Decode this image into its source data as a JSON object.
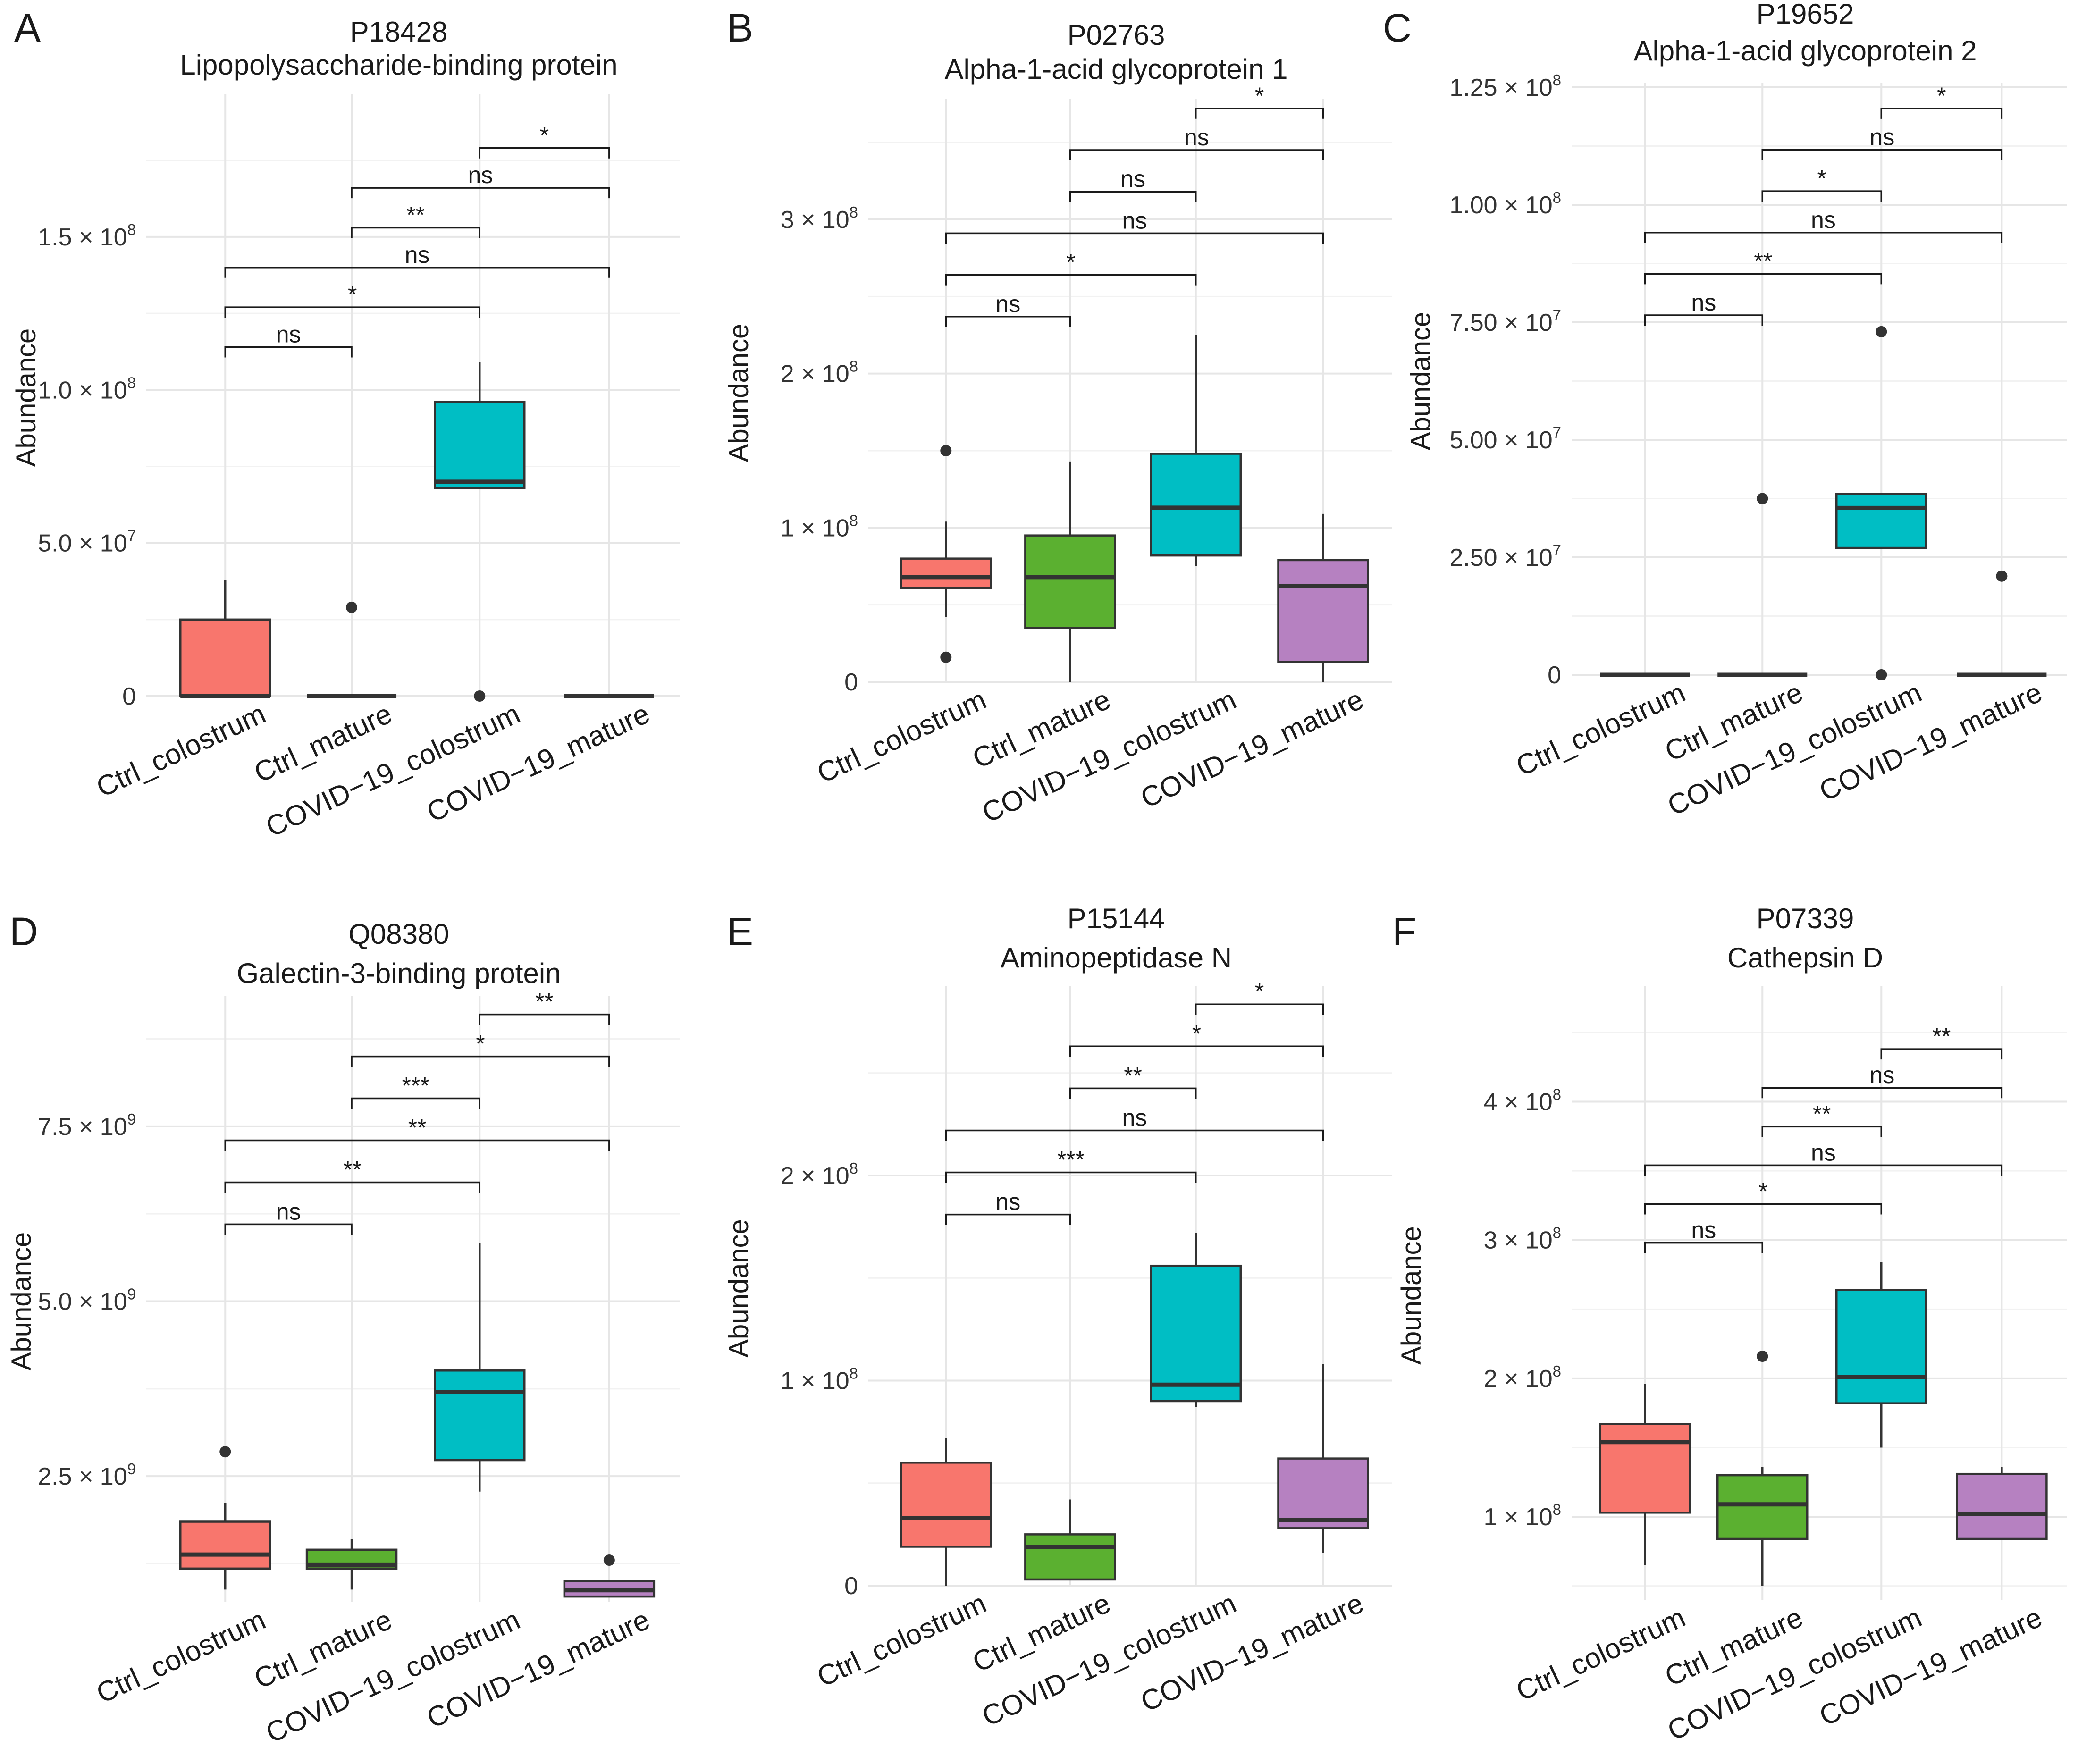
{
  "colors": {
    "Ctrl_colostrum": "#F8766D",
    "Ctrl_mature": "#5BB030",
    "COVID−19_colostrum": "#00BEC4",
    "COVID−19_mature": "#B681C1"
  },
  "chart_data": [
    {
      "type": "box",
      "panel": "A",
      "title": [
        "P18428",
        "Lipopolysaccharide-binding protein"
      ],
      "ylabel": "Abundance",
      "categories": [
        "Ctrl_colostrum",
        "Ctrl_mature",
        "COVID−19_colostrum",
        "COVID−19_mature"
      ],
      "ylim": [
        0,
        195000000
      ],
      "yticks": [
        {
          "value": 0,
          "label": "0",
          "base": "0",
          "exp": ""
        },
        {
          "value": 50000000,
          "label": "5.0 × 10^7",
          "base": "5.0 × 10",
          "exp": "7"
        },
        {
          "value": 100000000,
          "label": "1.0 × 10^8",
          "base": "1.0 × 10",
          "exp": "8"
        },
        {
          "value": 150000000,
          "label": "1.5 × 10^8",
          "base": "1.5 × 10",
          "exp": "8"
        }
      ],
      "boxes": [
        {
          "category": "Ctrl_colostrum",
          "min": 0,
          "q1": 0,
          "median": 0,
          "q3": 25000000,
          "max": 38000000,
          "outliers": []
        },
        {
          "category": "Ctrl_mature",
          "min": 0,
          "q1": 0,
          "median": 0,
          "q3": 0,
          "max": 0,
          "outliers": [
            29000000
          ]
        },
        {
          "category": "COVID−19_colostrum",
          "min": 68000000,
          "q1": 68000000,
          "median": 70000000,
          "q3": 96000000,
          "max": 109000000,
          "outliers": [
            0
          ]
        },
        {
          "category": "COVID−19_mature",
          "min": 0,
          "q1": 0,
          "median": 0,
          "q3": 0,
          "max": 0,
          "outliers": []
        }
      ],
      "comparisons": [
        {
          "from": 0,
          "to": 1,
          "y": 114000000,
          "label": "ns"
        },
        {
          "from": 0,
          "to": 2,
          "y": 127000000,
          "label": "*"
        },
        {
          "from": 0,
          "to": 3,
          "y": 140000000,
          "label": "ns"
        },
        {
          "from": 1,
          "to": 2,
          "y": 153000000,
          "label": "**"
        },
        {
          "from": 1,
          "to": 3,
          "y": 166000000,
          "label": "ns"
        },
        {
          "from": 2,
          "to": 3,
          "y": 179000000,
          "label": "*"
        }
      ]
    },
    {
      "type": "box",
      "panel": "B",
      "title": [
        "P02763",
        "Alpha-1-acid glycoprotein 1"
      ],
      "ylabel": "Abundance",
      "categories": [
        "Ctrl_colostrum",
        "Ctrl_mature",
        "COVID−19_colostrum",
        "COVID−19_mature"
      ],
      "ylim": [
        0,
        375000000
      ],
      "yticks": [
        {
          "value": 0,
          "label": "0",
          "base": "0",
          "exp": ""
        },
        {
          "value": 100000000,
          "label": "1 × 10^8",
          "base": "1 × 10",
          "exp": "8"
        },
        {
          "value": 200000000,
          "label": "2 × 10^8",
          "base": "2 × 10",
          "exp": "8"
        },
        {
          "value": 300000000,
          "label": "3 × 10^8",
          "base": "3 × 10",
          "exp": "8"
        }
      ],
      "boxes": [
        {
          "category": "Ctrl_colostrum",
          "min": 42000000,
          "q1": 61000000,
          "median": 68000000,
          "q3": 80000000,
          "max": 104000000,
          "outliers": [
            150000000,
            16000000
          ]
        },
        {
          "category": "Ctrl_mature",
          "min": 0,
          "q1": 35000000,
          "median": 68000000,
          "q3": 95000000,
          "max": 143000000,
          "outliers": []
        },
        {
          "category": "COVID−19_colostrum",
          "min": 75000000,
          "q1": 82000000,
          "median": 113000000,
          "q3": 148000000,
          "max": 225000000,
          "outliers": []
        },
        {
          "category": "COVID−19_mature",
          "min": 0,
          "q1": 13000000,
          "median": 62000000,
          "q3": 79000000,
          "max": 109000000,
          "outliers": []
        }
      ],
      "comparisons": [
        {
          "from": 0,
          "to": 1,
          "y": 237000000,
          "label": "ns"
        },
        {
          "from": 0,
          "to": 2,
          "y": 264000000,
          "label": "*"
        },
        {
          "from": 0,
          "to": 3,
          "y": 291000000,
          "label": "ns"
        },
        {
          "from": 1,
          "to": 2,
          "y": 318000000,
          "label": "ns"
        },
        {
          "from": 1,
          "to": 3,
          "y": 345000000,
          "label": "ns"
        },
        {
          "from": 2,
          "to": 3,
          "y": 372000000,
          "label": "*"
        }
      ]
    },
    {
      "type": "box",
      "panel": "C",
      "title": [
        "P19652",
        "Alpha-1-acid glycoprotein 2"
      ],
      "ylabel": "Abundance",
      "categories": [
        "Ctrl_colostrum",
        "Ctrl_mature",
        "COVID−19_colostrum",
        "COVID−19_mature"
      ],
      "ylim": [
        0,
        125000000
      ],
      "yticks": [
        {
          "value": 0,
          "label": "0",
          "base": "0",
          "exp": ""
        },
        {
          "value": 25000000,
          "label": "2.50 × 10^7",
          "base": "2.50 × 10",
          "exp": "7"
        },
        {
          "value": 50000000,
          "label": "5.00 × 10^7",
          "base": "5.00 × 10",
          "exp": "7"
        },
        {
          "value": 75000000,
          "label": "7.50 × 10^7",
          "base": "7.50 × 10",
          "exp": "7"
        },
        {
          "value": 100000000,
          "label": "1.00 × 10^8",
          "base": "1.00 × 10",
          "exp": "8"
        },
        {
          "value": 125000000,
          "label": "1.25 × 10^8",
          "base": "1.25 × 10",
          "exp": "8"
        }
      ],
      "boxes": [
        {
          "category": "Ctrl_colostrum",
          "min": 0,
          "q1": 0,
          "median": 0,
          "q3": 0,
          "max": 0,
          "outliers": []
        },
        {
          "category": "Ctrl_mature",
          "min": 0,
          "q1": 0,
          "median": 0,
          "q3": 0,
          "max": 0,
          "outliers": [
            37500000
          ]
        },
        {
          "category": "COVID−19_colostrum",
          "min": 27000000,
          "q1": 27000000,
          "median": 35500000,
          "q3": 38500000,
          "max": 38500000,
          "outliers": [
            73000000,
            0
          ]
        },
        {
          "category": "COVID−19_mature",
          "min": 0,
          "q1": 0,
          "median": 0,
          "q3": 0,
          "max": 0,
          "outliers": [
            21000000
          ]
        }
      ],
      "comparisons": [
        {
          "from": 0,
          "to": 1,
          "y": 76500000,
          "label": "ns"
        },
        {
          "from": 0,
          "to": 2,
          "y": 85300000,
          "label": "**"
        },
        {
          "from": 0,
          "to": 3,
          "y": 94100000,
          "label": "ns"
        },
        {
          "from": 1,
          "to": 2,
          "y": 102900000,
          "label": "*"
        },
        {
          "from": 1,
          "to": 3,
          "y": 111700000,
          "label": "ns"
        },
        {
          "from": 2,
          "to": 3,
          "y": 120500000,
          "label": "*"
        }
      ]
    },
    {
      "type": "box",
      "panel": "D",
      "title": [
        "Q08380",
        "Galectin-3-binding protein"
      ],
      "ylabel": "Abundance",
      "categories": [
        "Ctrl_colostrum",
        "Ctrl_mature",
        "COVID−19_colostrum",
        "COVID−19_mature"
      ],
      "ylim": [
        700000000,
        9300000000
      ],
      "yticks": [
        {
          "value": 2500000000,
          "label": "2.5 × 10^9",
          "base": "2.5 × 10",
          "exp": "9"
        },
        {
          "value": 5000000000,
          "label": "5.0 × 10^9",
          "base": "5.0 × 10",
          "exp": "9"
        },
        {
          "value": 7500000000,
          "label": "7.5 × 10^9",
          "base": "7.5 × 10",
          "exp": "9"
        }
      ],
      "boxes": [
        {
          "category": "Ctrl_colostrum",
          "min": 880000000,
          "q1": 1180000000,
          "median": 1380000000,
          "q3": 1850000000,
          "max": 2120000000,
          "outliers": [
            2850000000
          ]
        },
        {
          "category": "Ctrl_mature",
          "min": 880000000,
          "q1": 1180000000,
          "median": 1230000000,
          "q3": 1450000000,
          "max": 1600000000,
          "outliers": []
        },
        {
          "category": "COVID−19_colostrum",
          "min": 2280000000,
          "q1": 2730000000,
          "median": 3700000000,
          "q3": 4010000000,
          "max": 5830000000,
          "outliers": []
        },
        {
          "category": "COVID−19_mature",
          "min": 780000000,
          "q1": 780000000,
          "median": 870000000,
          "q3": 1000000000,
          "max": 1000000000,
          "outliers": [
            1300000000
          ]
        }
      ],
      "comparisons": [
        {
          "from": 0,
          "to": 1,
          "y": 6100000000,
          "label": "ns"
        },
        {
          "from": 0,
          "to": 2,
          "y": 6700000000,
          "label": "**"
        },
        {
          "from": 0,
          "to": 3,
          "y": 7300000000,
          "label": "**"
        },
        {
          "from": 1,
          "to": 2,
          "y": 7900000000,
          "label": "***"
        },
        {
          "from": 1,
          "to": 3,
          "y": 8500000000,
          "label": "*"
        },
        {
          "from": 2,
          "to": 3,
          "y": 9100000000,
          "label": "**"
        }
      ]
    },
    {
      "type": "box",
      "panel": "E",
      "title": [
        "P15144",
        "Aminopeptidase N"
      ],
      "ylabel": "Abundance",
      "categories": [
        "Ctrl_colostrum",
        "Ctrl_mature",
        "COVID−19_colostrum",
        "COVID−19_mature"
      ],
      "ylim": [
        0,
        290000000
      ],
      "yticks": [
        {
          "value": 0,
          "label": "0",
          "base": "0",
          "exp": ""
        },
        {
          "value": 100000000,
          "label": "1 × 10^8",
          "base": "1 × 10",
          "exp": "8"
        },
        {
          "value": 200000000,
          "label": "2 × 10^8",
          "base": "2 × 10",
          "exp": "8"
        }
      ],
      "boxes": [
        {
          "category": "Ctrl_colostrum",
          "min": 0,
          "q1": 19000000,
          "median": 33000000,
          "q3": 60000000,
          "max": 72000000,
          "outliers": []
        },
        {
          "category": "Ctrl_mature",
          "min": 3000000,
          "q1": 3000000,
          "median": 19000000,
          "q3": 25000000,
          "max": 42000000,
          "outliers": []
        },
        {
          "category": "COVID−19_colostrum",
          "min": 87000000,
          "q1": 90000000,
          "median": 98000000,
          "q3": 156000000,
          "max": 172000000,
          "outliers": []
        },
        {
          "category": "COVID−19_mature",
          "min": 16000000,
          "q1": 28000000,
          "median": 32000000,
          "q3": 62000000,
          "max": 108000000,
          "outliers": []
        }
      ],
      "comparisons": [
        {
          "from": 0,
          "to": 1,
          "y": 181000000,
          "label": "ns"
        },
        {
          "from": 0,
          "to": 2,
          "y": 201500000,
          "label": "***"
        },
        {
          "from": 0,
          "to": 3,
          "y": 222000000,
          "label": "ns"
        },
        {
          "from": 1,
          "to": 2,
          "y": 242500000,
          "label": "**"
        },
        {
          "from": 1,
          "to": 3,
          "y": 263000000,
          "label": "*"
        },
        {
          "from": 2,
          "to": 3,
          "y": 283500000,
          "label": "*"
        }
      ]
    },
    {
      "type": "box",
      "panel": "F",
      "title": [
        "P07339",
        "Cathepsin D"
      ],
      "ylabel": "Abundance",
      "categories": [
        "Ctrl_colostrum",
        "Ctrl_mature",
        "COVID−19_colostrum",
        "COVID−19_mature"
      ],
      "ylim": [
        40000000,
        480000000
      ],
      "yticks": [
        {
          "value": 100000000,
          "label": "1 × 10^8",
          "base": "1 × 10",
          "exp": "8"
        },
        {
          "value": 200000000,
          "label": "2 × 10^8",
          "base": "2 × 10",
          "exp": "8"
        },
        {
          "value": 300000000,
          "label": "3 × 10^8",
          "base": "3 × 10",
          "exp": "8"
        },
        {
          "value": 400000000,
          "label": "4 × 10^8",
          "base": "4 × 10",
          "exp": "8"
        }
      ],
      "boxes": [
        {
          "category": "Ctrl_colostrum",
          "min": 65000000,
          "q1": 103000000,
          "median": 154000000,
          "q3": 167000000,
          "max": 196000000,
          "outliers": []
        },
        {
          "category": "Ctrl_mature",
          "min": 50000000,
          "q1": 84000000,
          "median": 109000000,
          "q3": 130000000,
          "max": 136000000,
          "outliers": [
            216000000
          ]
        },
        {
          "category": "COVID−19_colostrum",
          "min": 150000000,
          "q1": 182000000,
          "median": 201000000,
          "q3": 264000000,
          "max": 284000000,
          "outliers": []
        },
        {
          "category": "COVID−19_mature",
          "min": 84000000,
          "q1": 84000000,
          "median": 102000000,
          "q3": 131000000,
          "max": 136000000,
          "outliers": []
        }
      ],
      "comparisons": [
        {
          "from": 0,
          "to": 1,
          "y": 298000000,
          "label": "ns"
        },
        {
          "from": 0,
          "to": 2,
          "y": 326000000,
          "label": "*"
        },
        {
          "from": 0,
          "to": 3,
          "y": 354000000,
          "label": "ns"
        },
        {
          "from": 1,
          "to": 2,
          "y": 382000000,
          "label": "**"
        },
        {
          "from": 1,
          "to": 3,
          "y": 410000000,
          "label": "ns"
        },
        {
          "from": 2,
          "to": 3,
          "y": 438000000,
          "label": "**"
        }
      ]
    }
  ]
}
